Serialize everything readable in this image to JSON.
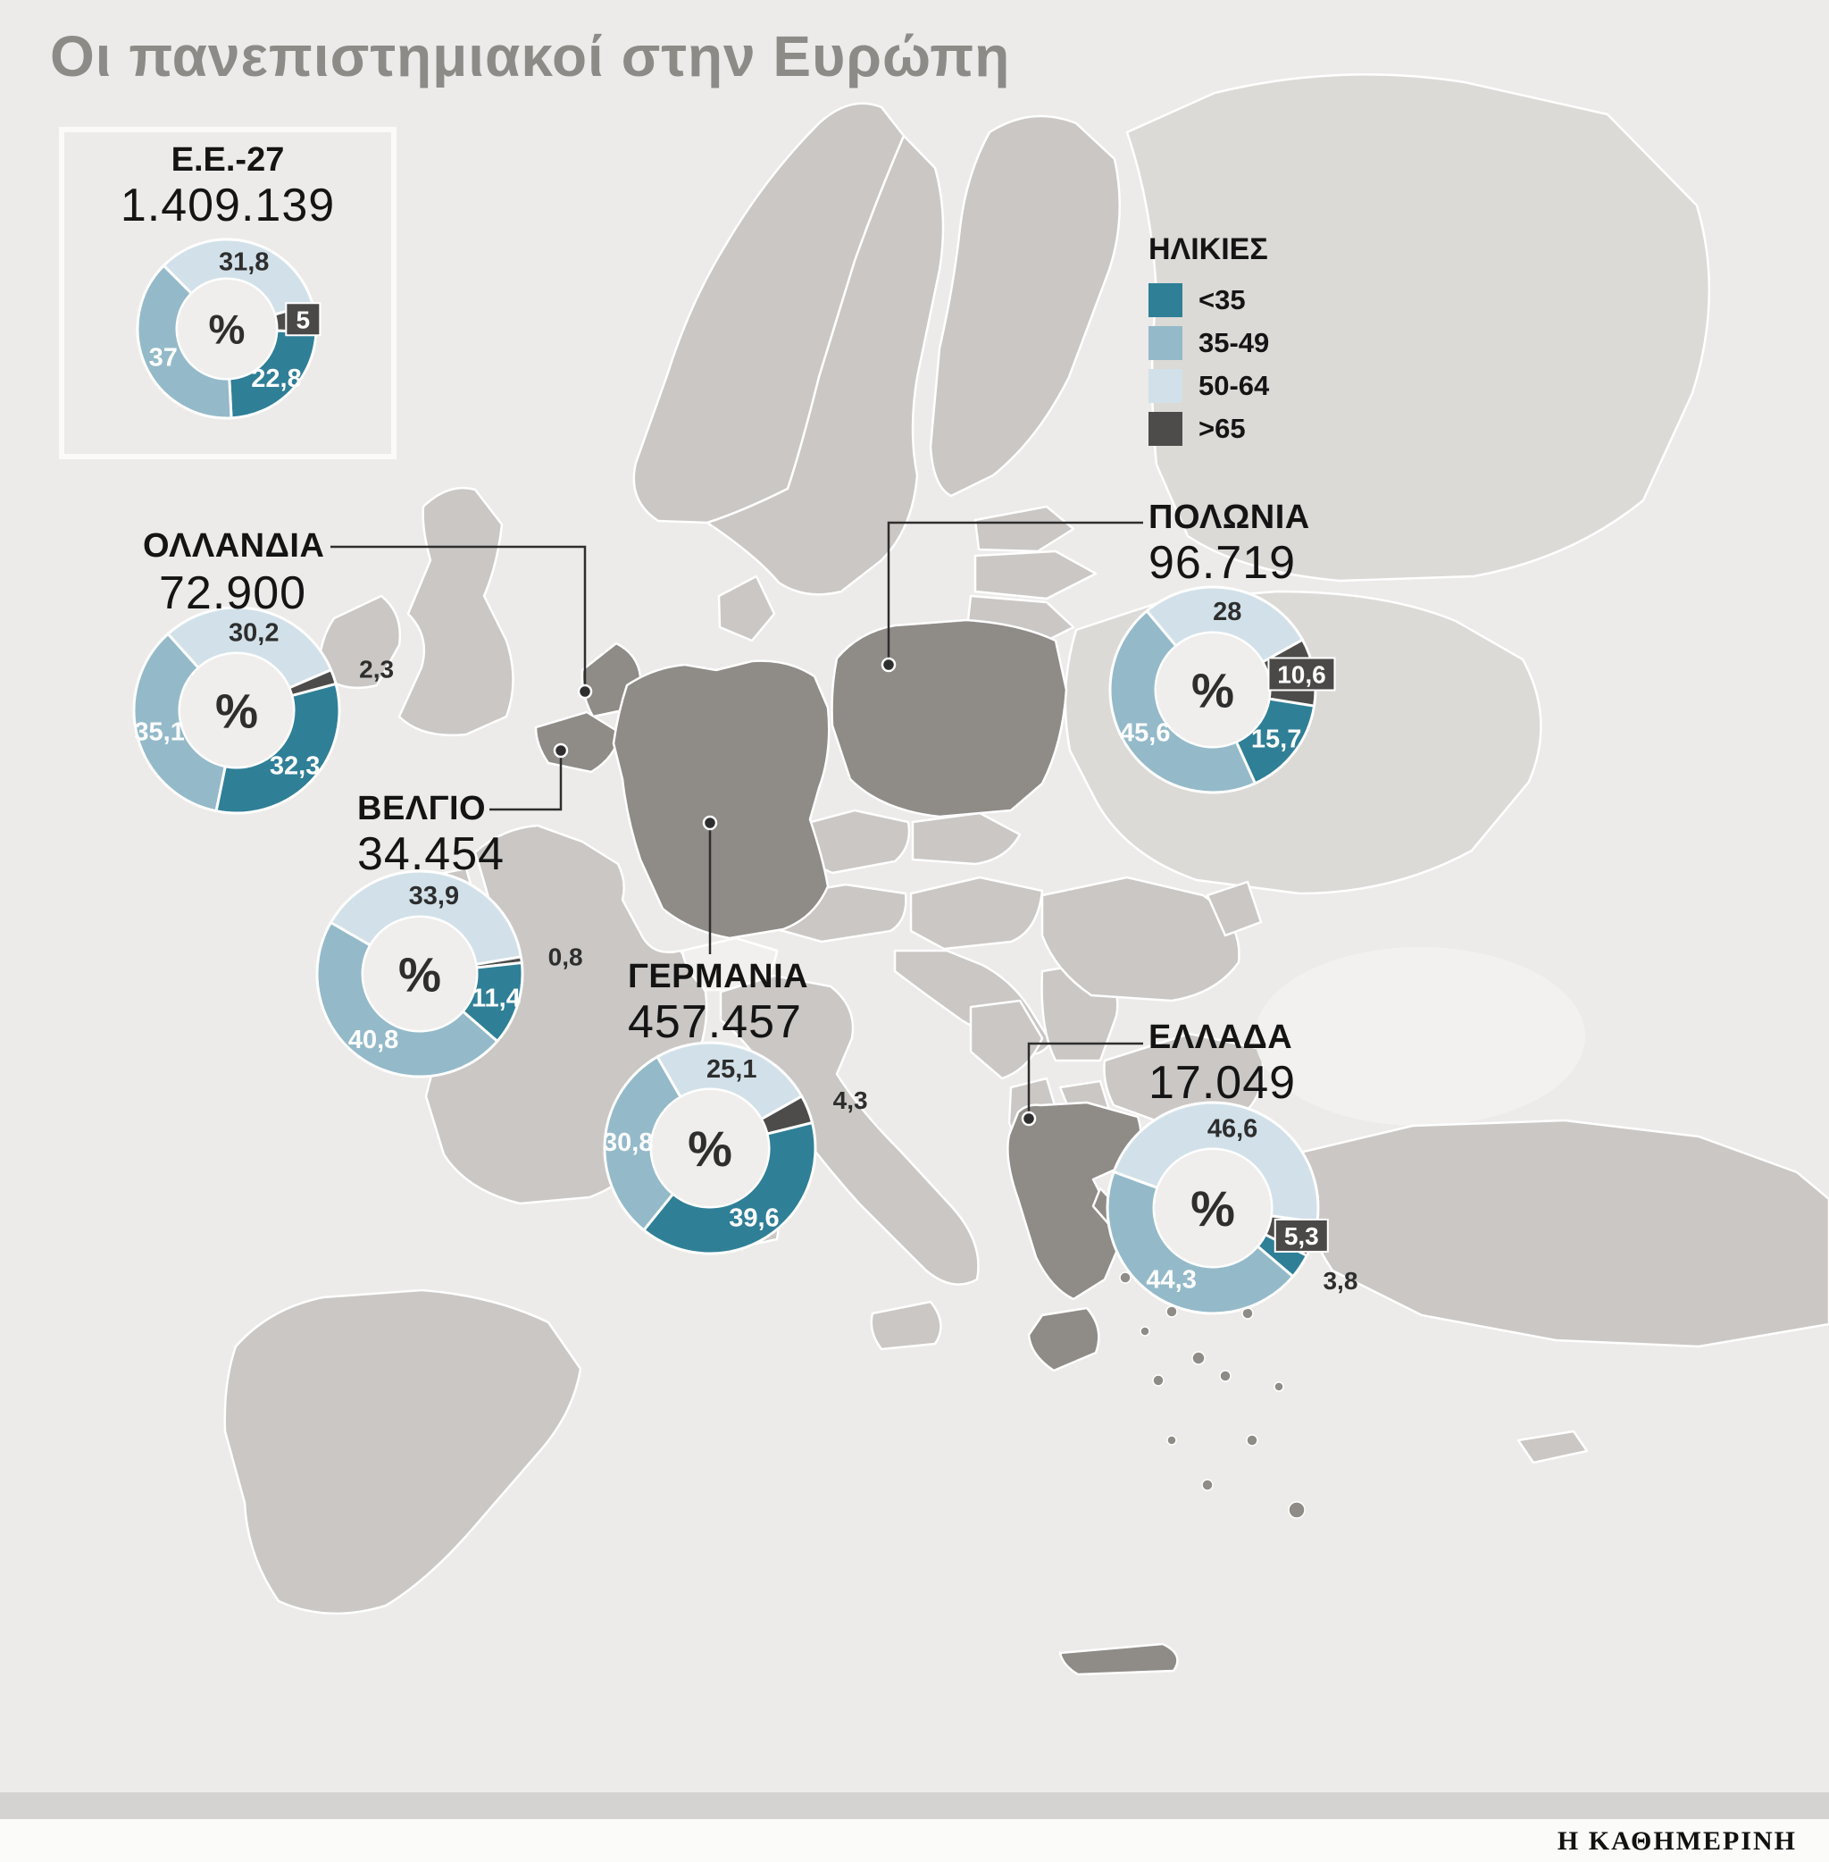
{
  "title": "Οι πανεπιστημιακοί στην Ευρώπη",
  "legend": {
    "title": "ΗΛΙΚΙΕΣ",
    "bands": [
      {
        "label": "<35",
        "color": "#2f7f97"
      },
      {
        "label": "35-49",
        "color": "#94bac9"
      },
      {
        "label": "50-64",
        "color": "#d2e1e9"
      },
      {
        "label": ">65",
        "color": "#4d4c4b"
      }
    ]
  },
  "percent_symbol": "%",
  "source": "Η ΚΑΘΗΜΕΡΙΝΗ",
  "map": {
    "sea": "#ecebe9",
    "land": "#cac7c4",
    "land_light": "#dcdad7",
    "land_white": "#f1f0ee",
    "highlight": "#8f8b87"
  },
  "chart_data": [
    {
      "type": "donut",
      "country": "Ε.Ε.-27",
      "total": "1.409.139",
      "categories": [
        "<35",
        "35-49",
        "50-64",
        ">65"
      ],
      "values": [
        22.8,
        37,
        31.8,
        5
      ],
      "labels": [
        "22,8",
        "37",
        "31,8",
        "5"
      ]
    },
    {
      "type": "donut",
      "country": "ΟΛΛΑΝΔΙΑ",
      "total": "72.900",
      "categories": [
        "<35",
        "35-49",
        "50-64",
        ">65"
      ],
      "values": [
        32.3,
        35.1,
        30.2,
        2.3
      ],
      "labels": [
        "32,3",
        "35,1",
        "30,2",
        "2,3"
      ]
    },
    {
      "type": "donut",
      "country": "ΒΕΛΓΙΟ",
      "total": "34.454",
      "categories": [
        "<35",
        "35-49",
        "50-64",
        ">65"
      ],
      "values": [
        11.4,
        40.8,
        33.9,
        0.8
      ],
      "labels": [
        "11,4",
        "40,8",
        "33,9",
        "0,8"
      ]
    },
    {
      "type": "donut",
      "country": "ΓΕΡΜΑΝΙΑ",
      "total": "457.457",
      "categories": [
        "<35",
        "35-49",
        "50-64",
        ">65"
      ],
      "values": [
        39.6,
        30.8,
        25.1,
        4.3
      ],
      "labels": [
        "39,6",
        "30,8",
        "25,1",
        "4,3"
      ]
    },
    {
      "type": "donut",
      "country": "ΠΟΛΩΝΙΑ",
      "total": "96.719",
      "categories": [
        "<35",
        "35-49",
        "50-64",
        ">65"
      ],
      "values": [
        15.7,
        45.6,
        28,
        10.6
      ],
      "labels": [
        "15,7",
        "45,6",
        "28",
        "10,6"
      ]
    },
    {
      "type": "donut",
      "country": "ΕΛΛΑΔΑ",
      "total": "17.049",
      "categories": [
        "<35",
        "35-49",
        "50-64",
        ">65"
      ],
      "values": [
        3.8,
        44.3,
        46.6,
        5.3
      ],
      "labels": [
        "3,8",
        "44,3",
        "46,6",
        "5,3"
      ]
    }
  ]
}
